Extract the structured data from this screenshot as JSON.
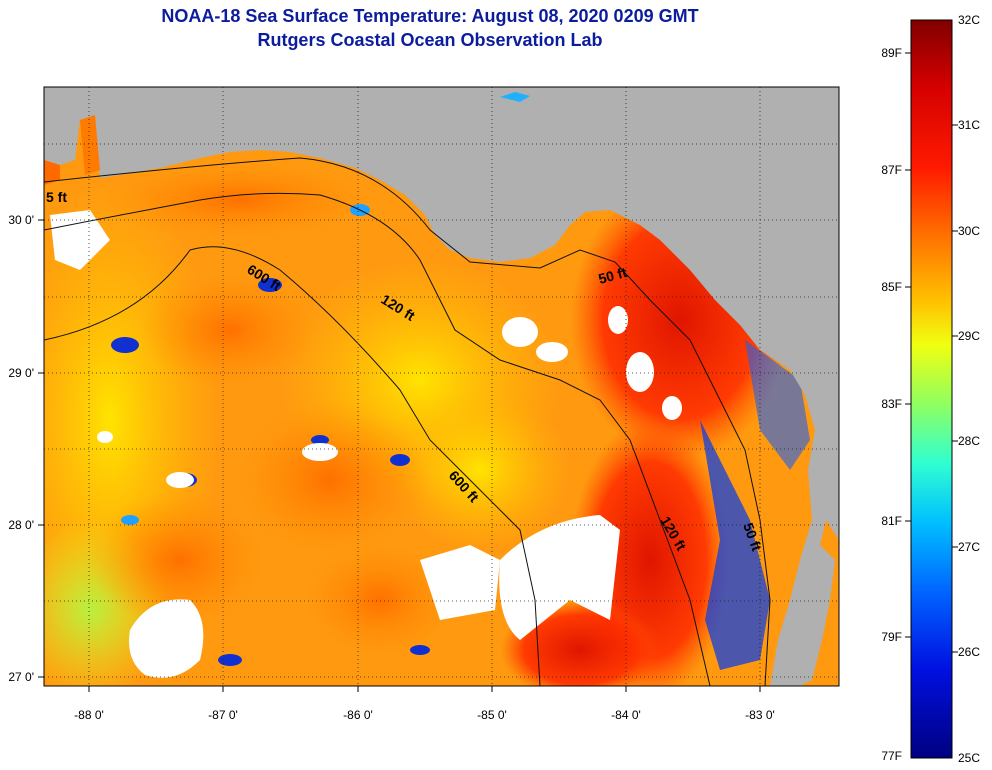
{
  "header": {
    "title": "NOAA-18 Sea Surface Temperature:  August 08, 2020 0209 GMT",
    "subtitle": "Rutgers Coastal Ocean Observation Lab"
  },
  "map": {
    "lon_ticks": [
      "-88 0'",
      "-87 0'",
      "-86 0'",
      "-85 0'",
      "-84 0'",
      "-83 0'"
    ],
    "lat_ticks": [
      "30 0'",
      "29 0'",
      "28 0'",
      "27 0'"
    ],
    "land_color": "#b0b0b0",
    "cloud_color": "#ffffff",
    "contours": [
      {
        "label": "5 ft"
      },
      {
        "label": "600 ft"
      },
      {
        "label": "120 ft"
      },
      {
        "label": "50 ft"
      },
      {
        "label": "600 ft"
      },
      {
        "label": "120 ft"
      },
      {
        "label": "50 ft"
      }
    ]
  },
  "colorbar": {
    "fahrenheit": [
      "89F",
      "87F",
      "85F",
      "83F",
      "81F",
      "79F",
      "77F"
    ],
    "celsius": [
      "32C",
      "31C",
      "30C",
      "29C",
      "28C",
      "27C",
      "26C",
      "25C"
    ],
    "palette": [
      "#800000",
      "#d40000",
      "#ff2a00",
      "#ff7a00",
      "#ffc800",
      "#e8ff10",
      "#90ff60",
      "#30ffd0",
      "#00b4ff",
      "#0050ff",
      "#0000c0",
      "#000080"
    ]
  }
}
